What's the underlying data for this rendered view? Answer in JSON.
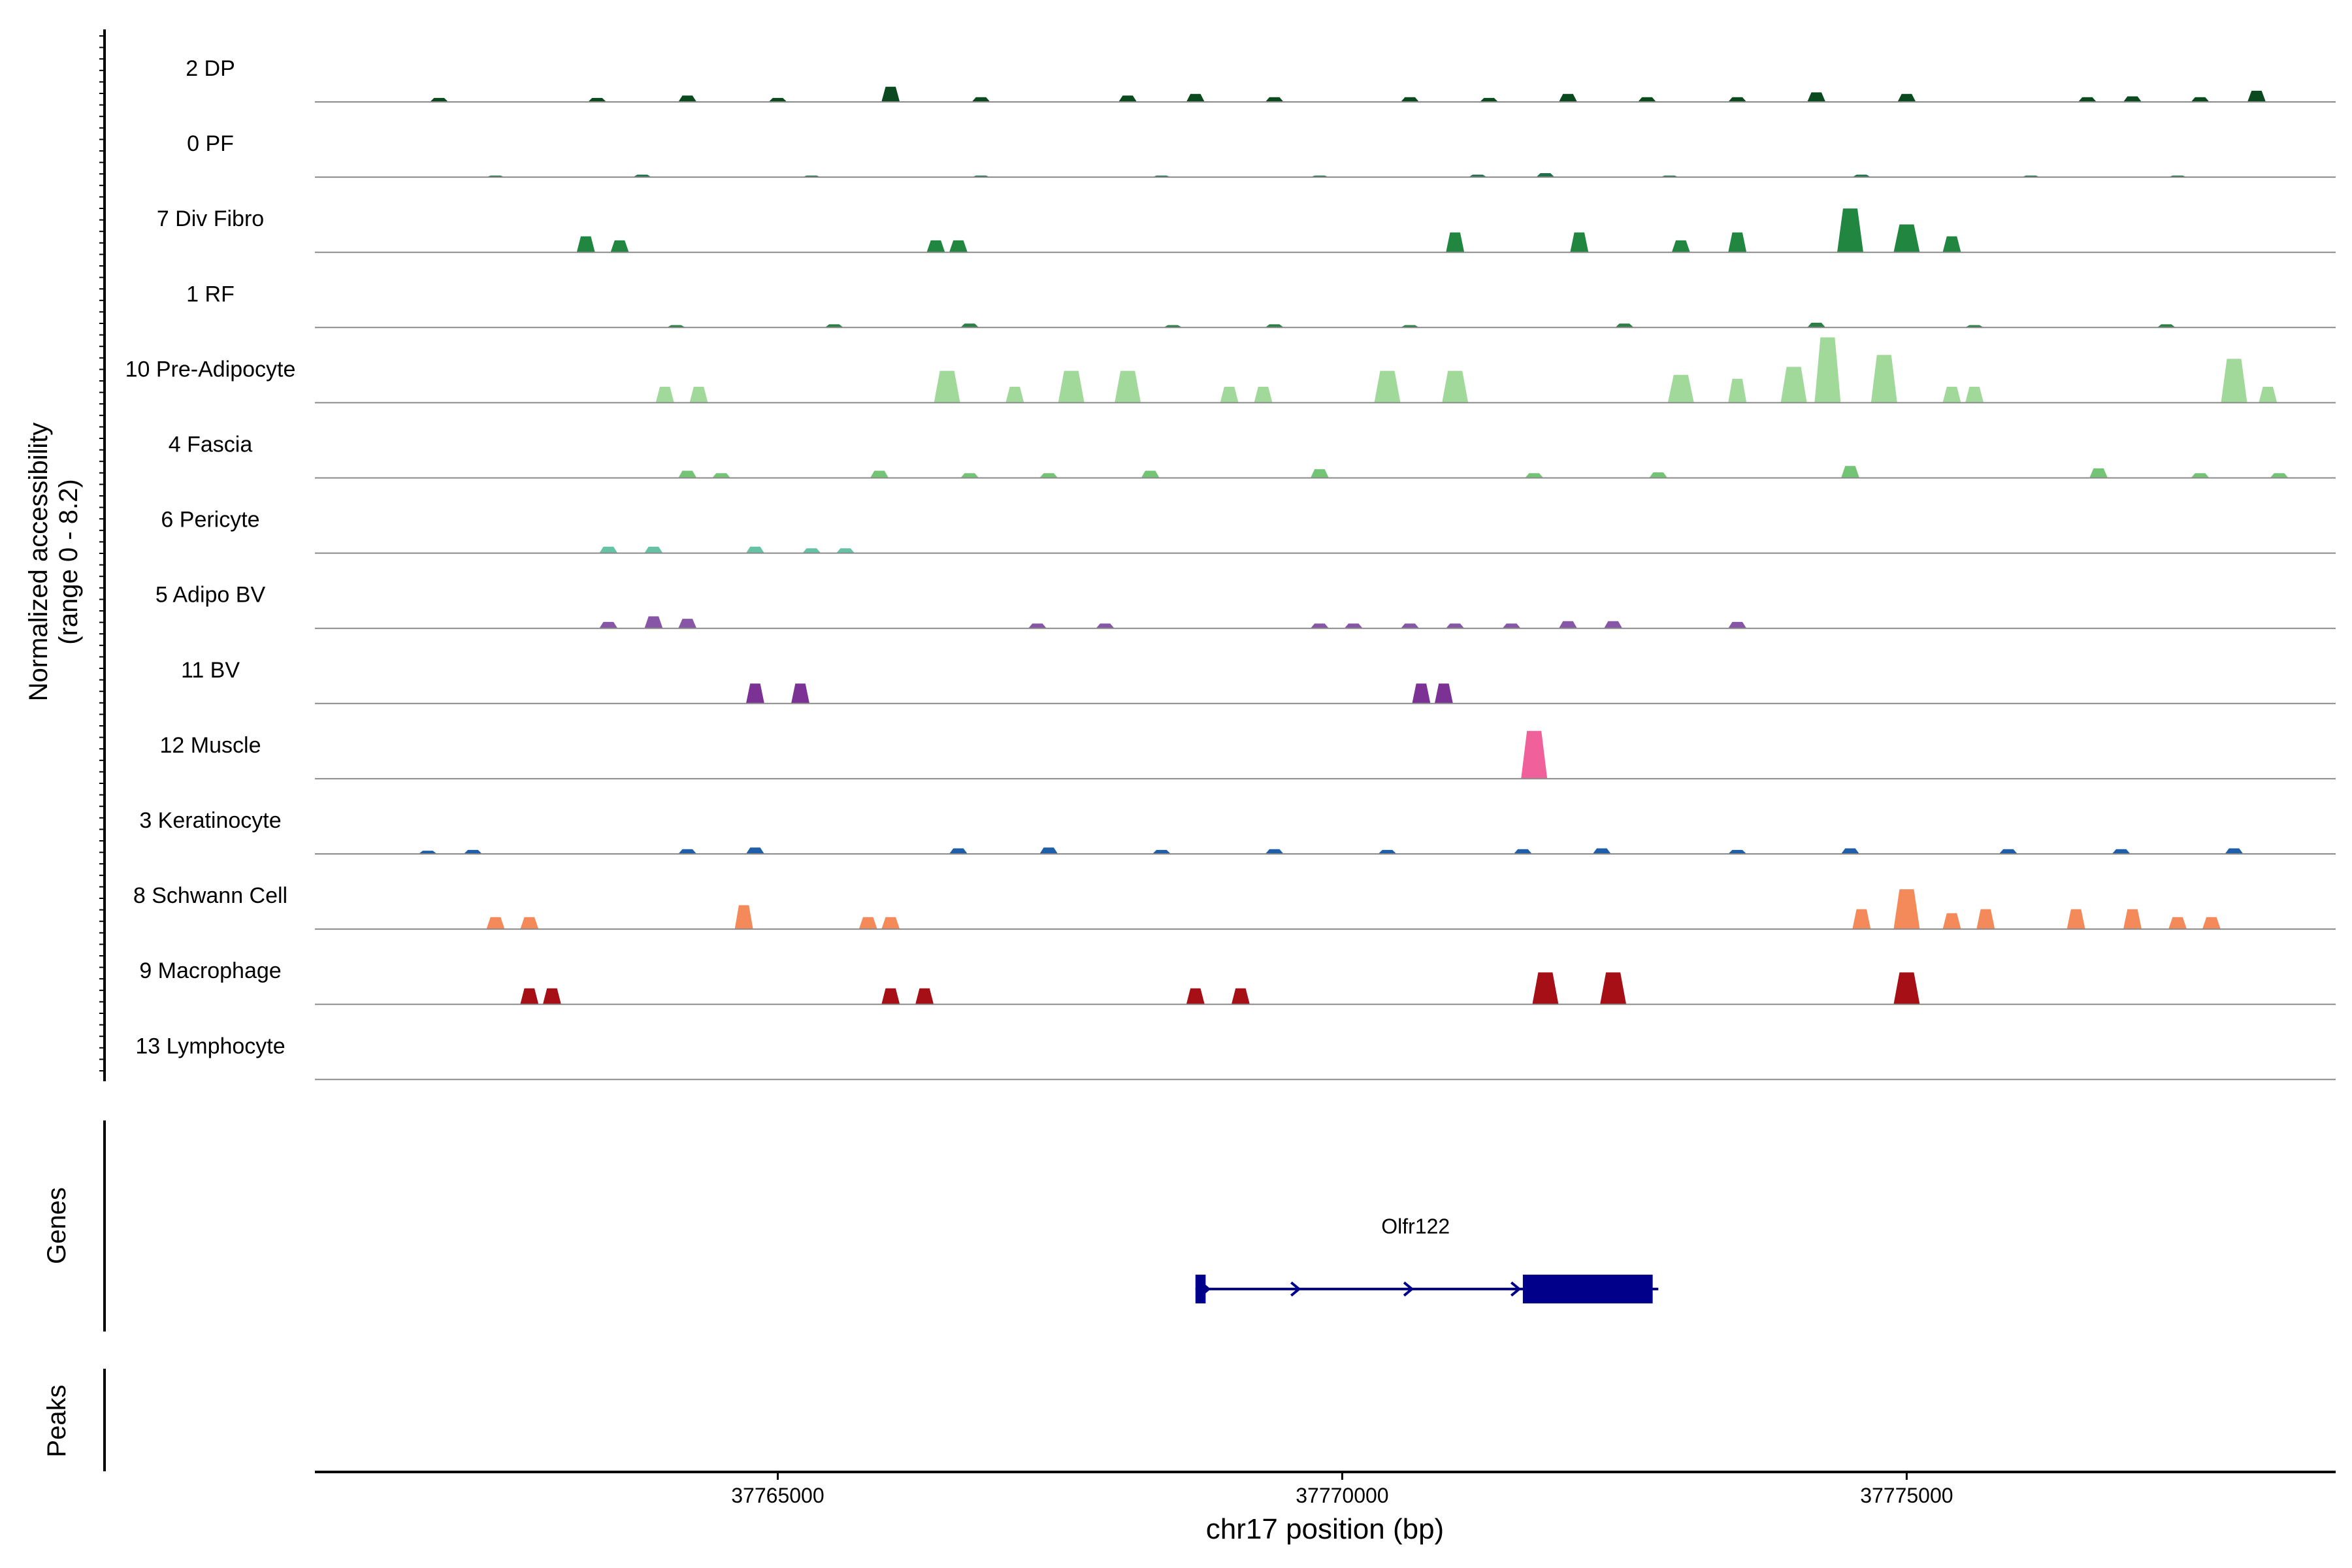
{
  "chart_data": {
    "type": "area",
    "y_axis_label_line1": "Normalized accessibility",
    "y_axis_label_line2": "(range 0 - 8.2)",
    "ylim": [
      0,
      8.2
    ],
    "x_axis_label": "chr17 position (bp)",
    "xlim": [
      37760900,
      37778800
    ],
    "x_ticks": [
      37765000,
      37770000,
      37775000
    ],
    "x_tick_labels": [
      "37765000",
      "37770000",
      "37775000"
    ],
    "tracks": [
      {
        "name": "2 DP",
        "color": "#0b4a1f",
        "peaks": [
          [
            37762000,
            0.5
          ],
          [
            37763400,
            0.5
          ],
          [
            37764200,
            0.8
          ],
          [
            37765000,
            0.5
          ],
          [
            37766000,
            1.9
          ],
          [
            37766800,
            0.6
          ],
          [
            37768100,
            0.8
          ],
          [
            37768700,
            1.0
          ],
          [
            37769400,
            0.6
          ],
          [
            37770600,
            0.6
          ],
          [
            37771300,
            0.5
          ],
          [
            37772000,
            1.0
          ],
          [
            37772700,
            0.6
          ],
          [
            37773500,
            0.6
          ],
          [
            37774200,
            1.2
          ],
          [
            37775000,
            1.0
          ],
          [
            37776600,
            0.6
          ],
          [
            37777000,
            0.7
          ],
          [
            37777600,
            0.6
          ],
          [
            37778100,
            1.4
          ]
        ]
      },
      {
        "name": "0 PF",
        "color": "#1f6f4b",
        "peaks": [
          [
            37762500,
            0.2
          ],
          [
            37763800,
            0.3
          ],
          [
            37765300,
            0.2
          ],
          [
            37766800,
            0.2
          ],
          [
            37768400,
            0.2
          ],
          [
            37769800,
            0.2
          ],
          [
            37771200,
            0.3
          ],
          [
            37771800,
            0.5
          ],
          [
            37772900,
            0.2
          ],
          [
            37774600,
            0.3
          ],
          [
            37776100,
            0.2
          ],
          [
            37777400,
            0.2
          ]
        ]
      },
      {
        "name": "7 Div Fibro",
        "color": "#218740",
        "peaks": [
          [
            37763300,
            2.0
          ],
          [
            37763600,
            1.5
          ],
          [
            37766400,
            1.5
          ],
          [
            37766600,
            1.5
          ],
          [
            37771000,
            2.5
          ],
          [
            37772100,
            2.5
          ],
          [
            37773000,
            1.5
          ],
          [
            37773500,
            2.5
          ],
          [
            37774500,
            5.5
          ],
          [
            37775000,
            3.5
          ],
          [
            37775400,
            2.0
          ]
        ]
      },
      {
        "name": "1 RF",
        "color": "#2c7f45",
        "peaks": [
          [
            37764100,
            0.3
          ],
          [
            37765500,
            0.4
          ],
          [
            37766700,
            0.5
          ],
          [
            37768500,
            0.3
          ],
          [
            37769400,
            0.4
          ],
          [
            37770600,
            0.3
          ],
          [
            37772500,
            0.5
          ],
          [
            37774200,
            0.6
          ],
          [
            37775600,
            0.3
          ],
          [
            37777300,
            0.4
          ]
        ]
      },
      {
        "name": "10 Pre-Adipocyte",
        "color": "#a1d99b",
        "peaks": [
          [
            37764000,
            2.0
          ],
          [
            37764300,
            2.0
          ],
          [
            37766500,
            4.0
          ],
          [
            37767100,
            2.0
          ],
          [
            37767600,
            4.0
          ],
          [
            37768100,
            4.0
          ],
          [
            37769000,
            2.0
          ],
          [
            37769300,
            2.0
          ],
          [
            37770400,
            4.0
          ],
          [
            37771000,
            4.0
          ],
          [
            37773000,
            3.5
          ],
          [
            37773500,
            3.0
          ],
          [
            37774000,
            4.5
          ],
          [
            37774300,
            8.2
          ],
          [
            37774800,
            6.0
          ],
          [
            37775400,
            2.0
          ],
          [
            37775600,
            2.0
          ],
          [
            37777900,
            5.5
          ],
          [
            37778200,
            2.0
          ]
        ]
      },
      {
        "name": "4 Fascia",
        "color": "#74c476",
        "peaks": [
          [
            37764200,
            0.9
          ],
          [
            37764500,
            0.6
          ],
          [
            37765900,
            0.9
          ],
          [
            37766700,
            0.6
          ],
          [
            37767400,
            0.6
          ],
          [
            37768300,
            0.9
          ],
          [
            37769800,
            1.1
          ],
          [
            37771700,
            0.6
          ],
          [
            37772800,
            0.7
          ],
          [
            37774500,
            1.5
          ],
          [
            37776700,
            1.2
          ],
          [
            37777600,
            0.6
          ],
          [
            37778300,
            0.6
          ]
        ]
      },
      {
        "name": "6 Pericyte",
        "color": "#66c2a4",
        "peaks": [
          [
            37763500,
            0.8
          ],
          [
            37763900,
            0.8
          ],
          [
            37764800,
            0.8
          ],
          [
            37765300,
            0.6
          ],
          [
            37765600,
            0.6
          ]
        ]
      },
      {
        "name": "5 Adipo BV",
        "color": "#8856a7",
        "peaks": [
          [
            37763500,
            0.8
          ],
          [
            37763900,
            1.5
          ],
          [
            37764200,
            1.2
          ],
          [
            37767300,
            0.6
          ],
          [
            37767900,
            0.6
          ],
          [
            37769800,
            0.6
          ],
          [
            37770100,
            0.6
          ],
          [
            37770600,
            0.6
          ],
          [
            37771000,
            0.6
          ],
          [
            37771500,
            0.6
          ],
          [
            37772000,
            0.9
          ],
          [
            37772400,
            0.9
          ],
          [
            37773500,
            0.8
          ]
        ]
      },
      {
        "name": "11 BV",
        "color": "#7b3294",
        "peaks": [
          [
            37764800,
            2.5
          ],
          [
            37765200,
            2.5
          ],
          [
            37770700,
            2.5
          ],
          [
            37770900,
            2.5
          ]
        ]
      },
      {
        "name": "12 Muscle",
        "color": "#f0609a",
        "peaks": [
          [
            37771700,
            6.0
          ]
        ]
      },
      {
        "name": "3 Keratinocyte",
        "color": "#1f5ea8",
        "peaks": [
          [
            37761900,
            0.4
          ],
          [
            37762300,
            0.5
          ],
          [
            37764200,
            0.6
          ],
          [
            37764800,
            0.8
          ],
          [
            37766600,
            0.7
          ],
          [
            37767400,
            0.8
          ],
          [
            37768400,
            0.5
          ],
          [
            37769400,
            0.6
          ],
          [
            37770400,
            0.5
          ],
          [
            37771600,
            0.6
          ],
          [
            37772300,
            0.7
          ],
          [
            37773500,
            0.5
          ],
          [
            37774500,
            0.7
          ],
          [
            37775900,
            0.6
          ],
          [
            37776900,
            0.6
          ],
          [
            37777900,
            0.7
          ]
        ]
      },
      {
        "name": "8 Schwann Cell",
        "color": "#f4895a",
        "peaks": [
          [
            37762500,
            1.5
          ],
          [
            37762800,
            1.5
          ],
          [
            37764700,
            3.0
          ],
          [
            37765800,
            1.5
          ],
          [
            37766000,
            1.5
          ],
          [
            37774600,
            2.5
          ],
          [
            37775000,
            5.0
          ],
          [
            37775400,
            2.0
          ],
          [
            37775700,
            2.5
          ],
          [
            37776500,
            2.5
          ],
          [
            37777000,
            2.5
          ],
          [
            37777400,
            1.5
          ],
          [
            37777700,
            1.5
          ]
        ]
      },
      {
        "name": "9 Macrophage",
        "color": "#a50f15",
        "peaks": [
          [
            37762800,
            2.0
          ],
          [
            37763000,
            2.0
          ],
          [
            37766000,
            2.0
          ],
          [
            37766300,
            2.0
          ],
          [
            37768700,
            2.0
          ],
          [
            37769100,
            2.0
          ],
          [
            37771800,
            4.0
          ],
          [
            37772400,
            4.0
          ],
          [
            37775000,
            4.0
          ]
        ]
      },
      {
        "name": "13 Lymphocyte",
        "color": "#e0e0e0",
        "peaks": []
      }
    ],
    "genes_label": "Genes",
    "peaks_label": "Peaks",
    "gene": {
      "name": "Olfr122",
      "color": "#00008b",
      "start": 37768700,
      "end": 37772800,
      "exons": [
        [
          37768700,
          37768790
        ],
        [
          37771600,
          37772750
        ]
      ]
    }
  }
}
